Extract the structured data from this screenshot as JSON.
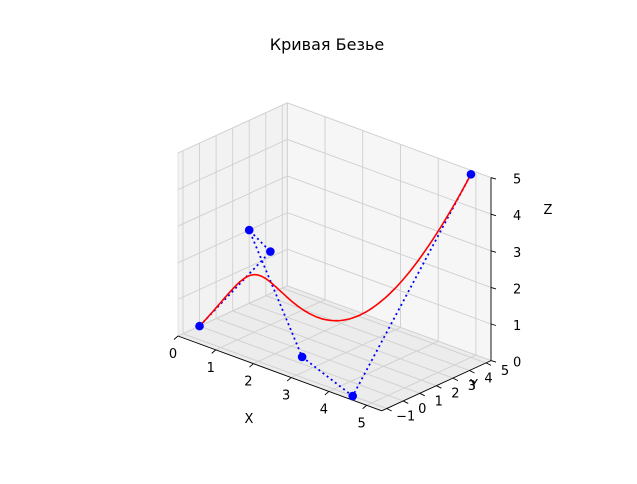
{
  "chart_data": {
    "type": "line3d",
    "title": "Кривая Безье",
    "xlabel": "X",
    "ylabel": "Y",
    "zlabel": "Z",
    "xlim": [
      0,
      5.4
    ],
    "ylim": [
      -1.3,
      5.3
    ],
    "zlim": [
      0,
      5
    ],
    "x_ticks": [
      "0",
      "1",
      "2",
      "3",
      "4",
      "5"
    ],
    "y_ticks": [
      "−1",
      "0",
      "1",
      "2",
      "3",
      "4",
      "5"
    ],
    "z_ticks": [
      "0",
      "1",
      "2",
      "3",
      "4",
      "5"
    ],
    "grid": true,
    "pane_color": "#f2f2f2",
    "control_points": [
      {
        "x": 0,
        "y": 0,
        "z": 0
      },
      {
        "x": 1,
        "y": 2,
        "z": 2
      },
      {
        "x": 0,
        "y": 3,
        "z": 2
      },
      {
        "x": 2.5,
        "y": 0.5,
        "z": 0
      },
      {
        "x": 4.5,
        "y": -1,
        "z": 0
      },
      {
        "x": 5,
        "y": 5,
        "z": 5
      }
    ],
    "series": [
      {
        "style": "dotted",
        "color": "#0000ff",
        "marker": "circle",
        "source": "control_points"
      },
      {
        "style": "solid",
        "color": "#ff0000",
        "source": "bezier"
      }
    ]
  }
}
